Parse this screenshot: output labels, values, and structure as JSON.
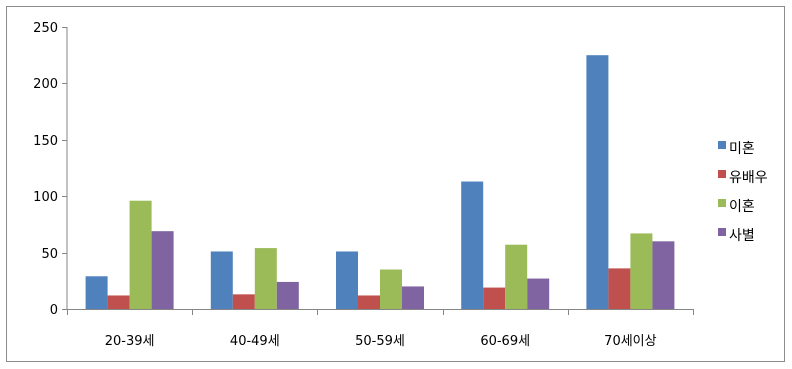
{
  "chart_data": {
    "type": "bar",
    "categories": [
      "20-39세",
      "40-49세",
      "50-59세",
      "60-69세",
      "70세이상"
    ],
    "series": [
      {
        "name": "미혼",
        "color": "#4f81bd",
        "values": [
          29,
          51,
          51,
          113,
          225
        ]
      },
      {
        "name": "유배우",
        "color": "#c0504d",
        "values": [
          12,
          13,
          12,
          19,
          36
        ]
      },
      {
        "name": "이혼",
        "color": "#9bbb59",
        "values": [
          96,
          54,
          35,
          57,
          67
        ]
      },
      {
        "name": "사별",
        "color": "#8064a2",
        "values": [
          69,
          24,
          20,
          27,
          60
        ]
      }
    ],
    "ylim": [
      0,
      250
    ],
    "yticks": [
      0,
      50,
      100,
      150,
      200,
      250
    ],
    "title": "",
    "xlabel": "",
    "ylabel": "",
    "grid": false,
    "legend_position": "right"
  }
}
